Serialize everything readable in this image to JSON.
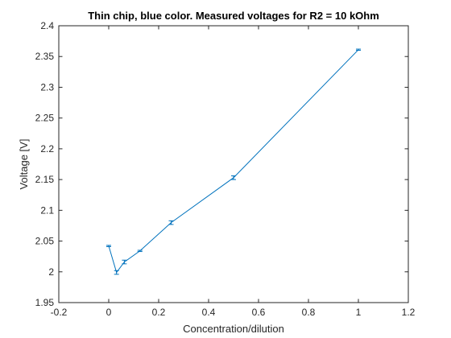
{
  "chart_data": {
    "type": "line",
    "title": "Thin chip, blue color. Measured voltages for R2 = 10 kOhm",
    "xlabel": "Concentration/dilution",
    "ylabel": "Voltage [V]",
    "xlim": [
      -0.2,
      1.2
    ],
    "ylim": [
      1.95,
      2.4
    ],
    "xticks": [
      -0.2,
      0,
      0.2,
      0.4,
      0.6,
      0.8,
      1,
      1.2
    ],
    "xtick_labels": [
      "-0.2",
      "0",
      "0.2",
      "0.4",
      "0.6",
      "0.8",
      "1",
      "1.2"
    ],
    "yticks": [
      1.95,
      2,
      2.05,
      2.1,
      2.15,
      2.2,
      2.25,
      2.3,
      2.35,
      2.4
    ],
    "ytick_labels": [
      "1.95",
      "2",
      "2.05",
      "2.1",
      "2.15",
      "2.2",
      "2.25",
      "2.3",
      "2.35",
      "2.4"
    ],
    "grid": false,
    "box": true,
    "series": [
      {
        "color": "#0072bd",
        "x": [
          0,
          0.03125,
          0.0625,
          0.125,
          0.25,
          0.5,
          1
        ],
        "y": [
          2.042,
          1.999,
          2.016,
          2.034,
          2.08,
          2.153,
          2.361
        ],
        "error": [
          0.001,
          0.003,
          0.003,
          0.001,
          0.003,
          0.003,
          0.001
        ]
      }
    ]
  }
}
